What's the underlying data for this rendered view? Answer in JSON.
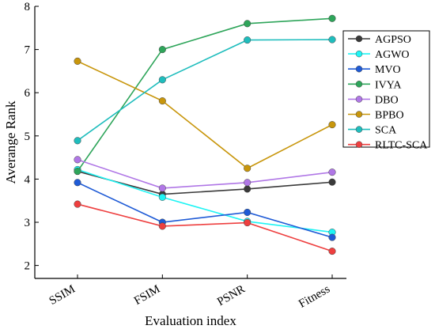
{
  "chart_data": {
    "type": "line",
    "title": "",
    "xlabel": "Evaluation index",
    "ylabel": "Averange Rank",
    "categories": [
      "SSIM",
      "FSIM",
      "PSNR",
      "Fitness"
    ],
    "ylim": [
      1.7,
      8
    ],
    "yticks": [
      "2",
      "3",
      "4",
      "5",
      "6",
      "7",
      "8"
    ],
    "grid": false,
    "legend_position": "top-right",
    "series": [
      {
        "name": "AGPSO",
        "color": "#3a3a3a",
        "values": [
          4.18,
          3.65,
          3.77,
          3.93
        ]
      },
      {
        "name": "AGWO",
        "color": "#1ff4f4",
        "values": [
          4.22,
          3.58,
          3.02,
          2.77
        ]
      },
      {
        "name": "MVO",
        "color": "#1f5bd6",
        "values": [
          3.92,
          3.0,
          3.23,
          2.65
        ]
      },
      {
        "name": "IVYA",
        "color": "#2ea55a",
        "values": [
          4.18,
          7.0,
          7.6,
          7.72
        ]
      },
      {
        "name": "DBO",
        "color": "#b077e6",
        "values": [
          4.45,
          3.79,
          3.92,
          4.16
        ]
      },
      {
        "name": "BPBO",
        "color": "#c8960c",
        "values": [
          6.73,
          5.81,
          4.25,
          5.26
        ]
      },
      {
        "name": "SCA",
        "color": "#1fbdbd",
        "values": [
          4.89,
          6.3,
          7.22,
          7.23
        ]
      },
      {
        "name": "RLTC-SCA",
        "color": "#ee3f3f",
        "values": [
          3.42,
          2.91,
          2.99,
          2.33
        ]
      }
    ]
  }
}
